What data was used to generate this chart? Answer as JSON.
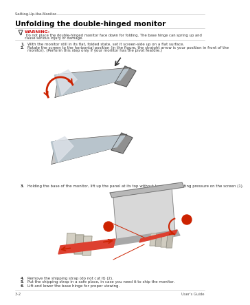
{
  "bg_color": "#ffffff",
  "header_text": "Setting Up the Monitor",
  "title": "Unfolding the double-hinged monitor",
  "warning_label": "WARNING:",
  "warning_body": " Do not place the double-hinged monitor face down for folding. The base hinge can spring up and\ncause serious injury or damage.",
  "step1": "With the monitor still in its flat, folded state, set it screen-side up on a flat surface.",
  "step2": "Rotate the screen to the horizontal position (in the figure, the straight arrow is your position in front of the\nmonitor). (Perform this step only if your monitor has the pivot feature.)",
  "step3": "Holding the base of the monitor, lift up the panel at its top without touching or putting pressure on the screen (1).",
  "step4": "Remove the shipping strap (do not cut it) (2).",
  "step5": "Put the shipping strap in a safe place, in case you need it to ship the monitor.",
  "step6": "Lift and lower the base hinge for proper viewing.",
  "footer_left": "3–2",
  "footer_right": "User's Guide",
  "gray_light": "#d8d8d8",
  "gray_med": "#a0a0a0",
  "gray_dark": "#707070",
  "screen_color": "#c0c8d0",
  "screen_highlight": "#e8ecf0",
  "red_arrow": "#cc2200",
  "black_arrow": "#222222",
  "text_color": "#333333",
  "header_color": "#555555",
  "warning_color": "#cc0000",
  "line_color": "#bbbbbb"
}
